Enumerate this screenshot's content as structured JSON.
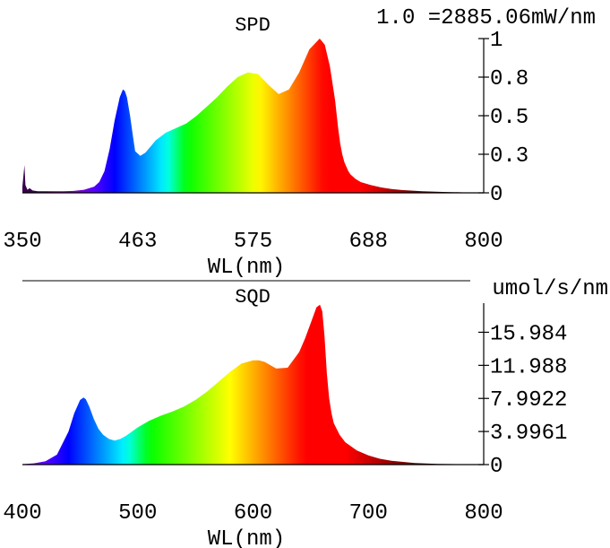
{
  "chart_data": [
    {
      "type": "area",
      "title": "SPD",
      "scale_label": "1.0 =2885.06mW/nm",
      "xlabel": "WL(nm)",
      "ylabel": "",
      "xlim": [
        350,
        800
      ],
      "ylim": [
        0,
        1
      ],
      "x_ticks": [
        "350",
        "463",
        "575",
        "688",
        "800"
      ],
      "y_ticks": [
        "0",
        "0.3",
        "0.5",
        "0.8",
        "1"
      ],
      "y_tick_values": [
        0,
        0.25,
        0.5,
        0.75,
        1
      ],
      "fill": "wavelength-spectrum-gradient",
      "x": [
        350,
        352,
        353,
        355,
        357,
        360,
        365,
        370,
        380,
        390,
        400,
        410,
        420,
        425,
        430,
        435,
        440,
        445,
        448,
        450,
        452,
        455,
        458,
        460,
        465,
        470,
        475,
        480,
        490,
        500,
        510,
        520,
        530,
        540,
        550,
        560,
        570,
        580,
        590,
        600,
        610,
        620,
        630,
        640,
        645,
        650,
        655,
        658,
        660,
        662,
        664,
        666,
        668,
        670,
        675,
        680,
        690,
        700,
        710,
        720,
        740,
        760,
        780,
        800
      ],
      "y": [
        0.04,
        0.18,
        0.05,
        0.02,
        0.03,
        0.015,
        0.01,
        0.01,
        0.01,
        0.01,
        0.012,
        0.02,
        0.04,
        0.07,
        0.14,
        0.28,
        0.47,
        0.62,
        0.67,
        0.66,
        0.62,
        0.5,
        0.36,
        0.27,
        0.24,
        0.26,
        0.3,
        0.34,
        0.39,
        0.42,
        0.45,
        0.5,
        0.56,
        0.62,
        0.69,
        0.75,
        0.78,
        0.77,
        0.7,
        0.64,
        0.67,
        0.78,
        0.93,
        1.0,
        0.96,
        0.82,
        0.6,
        0.42,
        0.32,
        0.25,
        0.2,
        0.17,
        0.14,
        0.12,
        0.09,
        0.07,
        0.05,
        0.035,
        0.025,
        0.018,
        0.01,
        0.006,
        0.003,
        0.001
      ]
    },
    {
      "type": "area",
      "title": "SQD",
      "unit_label": "umol/s/nm",
      "xlabel": "WL(nm)",
      "ylabel": "",
      "xlim": [
        400,
        800
      ],
      "ylim": [
        0,
        19.5
      ],
      "x_ticks": [
        "400",
        "500",
        "600",
        "700",
        "800"
      ],
      "y_ticks": [
        "0",
        "3.9961",
        "7.9922",
        "11.988",
        "15.984"
      ],
      "y_tick_values": [
        0,
        3.9961,
        7.9922,
        11.988,
        15.984
      ],
      "fill": "wavelength-spectrum-gradient",
      "x": [
        400,
        410,
        420,
        430,
        440,
        445,
        450,
        453,
        455,
        458,
        462,
        466,
        470,
        475,
        480,
        485,
        490,
        500,
        510,
        520,
        530,
        540,
        550,
        560,
        570,
        580,
        590,
        600,
        605,
        610,
        620,
        630,
        640,
        645,
        650,
        655,
        658,
        660,
        662,
        664,
        666,
        668,
        670,
        675,
        680,
        690,
        700,
        710,
        720,
        740,
        760,
        780,
        800
      ],
      "y": [
        0.05,
        0.15,
        0.4,
        1.2,
        4.0,
        6.2,
        7.8,
        8.1,
        7.9,
        7.0,
        5.5,
        4.3,
        3.6,
        3.1,
        2.9,
        3.1,
        3.5,
        4.5,
        5.3,
        5.9,
        6.4,
        7.0,
        7.8,
        8.8,
        10.0,
        11.2,
        12.2,
        12.6,
        12.6,
        12.4,
        11.6,
        11.7,
        13.6,
        15.2,
        17.1,
        19.0,
        19.3,
        18.5,
        15.5,
        11.0,
        8.0,
        6.2,
        5.0,
        3.6,
        2.7,
        1.7,
        1.1,
        0.7,
        0.45,
        0.2,
        0.09,
        0.04,
        0.02
      ]
    }
  ]
}
